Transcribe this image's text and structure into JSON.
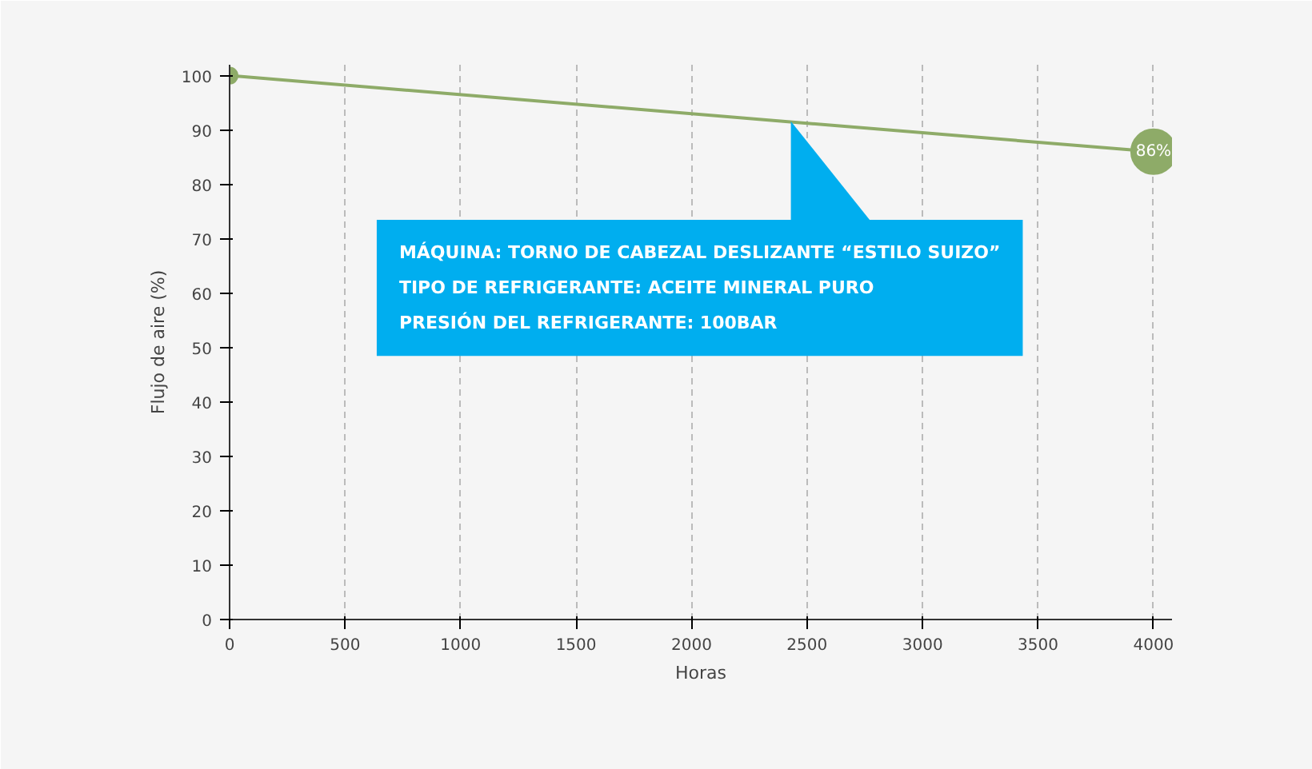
{
  "chart_data": {
    "type": "line",
    "xlabel": "Horas",
    "ylabel": "Flujo de aire (%)",
    "x": [
      0,
      4000
    ],
    "series": [
      {
        "color": "#8eab68",
        "values": [
          100,
          86
        ],
        "value_labels": [
          null,
          "86%"
        ]
      }
    ],
    "xlim": [
      0,
      4080
    ],
    "ylim": [
      0,
      102
    ],
    "xticks": [
      0,
      500,
      1000,
      1500,
      2000,
      2500,
      3000,
      3500,
      4000
    ],
    "yticks": [
      0,
      10,
      20,
      30,
      40,
      50,
      60,
      70,
      80,
      90,
      100
    ],
    "grid": "x",
    "marker": "circle",
    "line_style": "solid",
    "annotations": [
      "MÁQUINA: TORNO DE CABEZAL DESLIZANTE “ESTILO SUIZO”",
      "TIPO DE REFRIGERANTE:  ACEITE MINERAL PURO",
      "PRESIÓN DEL REFRIGERANTE:  100BAR"
    ]
  }
}
